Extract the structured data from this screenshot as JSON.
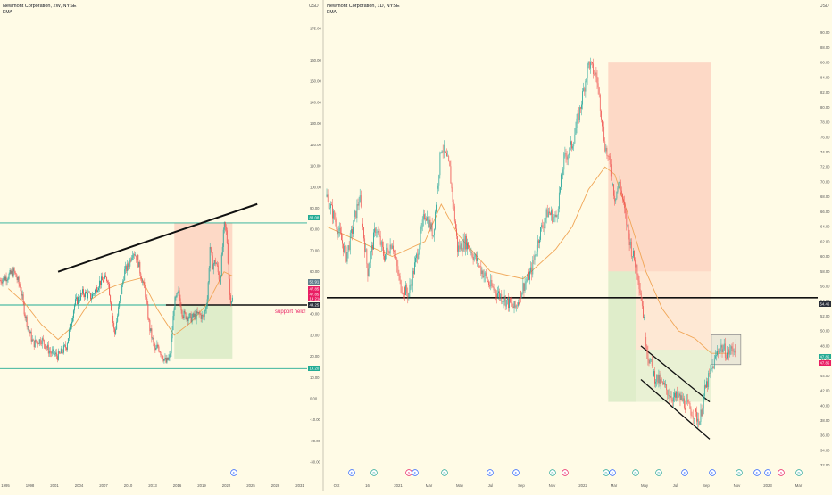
{
  "colors": {
    "background": "#fffbe6",
    "up": "#26a69a",
    "down": "#ef5350",
    "ema": "#f0a657",
    "trendline": "#111111",
    "horizontal_teal": "#22ab94",
    "profit_zone": "#4caf50",
    "loss_zone": "#f44336",
    "label_red": "#e91e63",
    "label_dark": "#2a2e39"
  },
  "chart_data": [
    {
      "type": "candlestick",
      "title": "Newmont Corporation, 2W, NYSE",
      "indicator": "EMA",
      "currency": "USD",
      "price_scale": [
        "175.00",
        "160.00",
        "150.00",
        "140.00",
        "130.00",
        "120.00",
        "110.00",
        "100.00",
        "90.00",
        "80.00",
        "70.00",
        "60.00",
        "50.00",
        "40.00",
        "30.00",
        "20.00",
        "10.00",
        "0.00",
        "-10.00",
        "-20.00",
        "-30.00"
      ],
      "x_ticks": [
        "1995",
        "1998",
        "2001",
        "2004",
        "2007",
        "2010",
        "2013",
        "2016",
        "2019",
        "2022",
        "2025",
        "2028",
        "2031"
      ],
      "last_price_labels": [
        "52.91",
        "47.85",
        "47.85",
        "14 21d"
      ],
      "level_labels": [
        "83.08",
        "44.25",
        "14.20"
      ],
      "annotation": "support held!",
      "ylim": [
        -35,
        180
      ],
      "xlim": [
        1995,
        2032
      ],
      "levels": [
        83.08,
        44.25,
        14.2
      ],
      "trendline": {
        "x": [
          2002,
          2026
        ],
        "y": [
          60,
          92
        ]
      },
      "support_line": {
        "x": [
          2015,
          2032
        ],
        "y": [
          44.25,
          44.25
        ]
      },
      "zones": {
        "loss": {
          "x": [
            2016,
            2023
          ],
          "y": [
            44.25,
            83.08
          ]
        },
        "profit": {
          "x": [
            2016,
            2023
          ],
          "y": [
            19,
            44.25
          ]
        }
      },
      "series": [
        {
          "name": "price",
          "x": [
            1995,
            1996,
            1996.7,
            1997.5,
            1998,
            1998.5,
            1999,
            2000,
            2000.5,
            2001,
            2002,
            2003,
            2004,
            2005,
            2006,
            2007,
            2008,
            2008.8,
            2009.5,
            2010,
            2010.5,
            2011,
            2011.5,
            2012,
            2012.5,
            2013,
            2013.7,
            2014,
            2015,
            2015.5,
            2016,
            2016.5,
            2017,
            2018,
            2019,
            2019.5,
            2020,
            2020.3,
            2020.6,
            2021,
            2021.5,
            2022,
            2022.3,
            2022.7,
            2023
          ],
          "y": [
            56,
            58,
            60,
            52,
            40,
            32,
            26,
            28,
            25,
            22,
            20,
            25,
            45,
            50,
            48,
            55,
            57,
            30,
            48,
            60,
            63,
            70,
            67,
            58,
            50,
            34,
            22,
            25,
            17,
            20,
            45,
            50,
            40,
            38,
            40,
            38,
            48,
            72,
            63,
            65,
            55,
            82,
            78,
            47,
            47
          ]
        },
        {
          "name": "EMA",
          "x": [
            1996,
            1998,
            2000,
            2002,
            2004,
            2006,
            2008,
            2010,
            2012,
            2014,
            2016,
            2018,
            2020,
            2022,
            2023
          ],
          "y": [
            52,
            45,
            35,
            28,
            35,
            47,
            52,
            55,
            57,
            42,
            30,
            36,
            45,
            60,
            58
          ]
        }
      ],
      "flag_markers": [
        "E"
      ]
    },
    {
      "type": "candlestick",
      "title": "Newmont Corporation, 1D, NYSE",
      "indicator": "EMA",
      "currency": "USD",
      "price_scale": [
        "90.00",
        "88.00",
        "86.00",
        "84.00",
        "82.00",
        "80.00",
        "78.00",
        "76.00",
        "74.00",
        "72.00",
        "70.00",
        "68.00",
        "66.00",
        "64.00",
        "62.00",
        "60.00",
        "58.00",
        "56.00",
        "54.00",
        "52.00",
        "50.00",
        "48.00",
        "46.00",
        "44.00",
        "42.00",
        "40.00",
        "38.00",
        "36.00",
        "34.00",
        "32.00"
      ],
      "x_ticks": [
        "Oct",
        "16",
        "2021",
        "Mar",
        "May",
        "Jul",
        "Sep",
        "Nov",
        "2022",
        "Mar",
        "May",
        "Jul",
        "Sep",
        "Nov",
        "2023",
        "Mar"
      ],
      "last_price_labels": [
        "47.85",
        "47.85"
      ],
      "level_labels": [
        "54.46"
      ],
      "ylim": [
        31,
        92
      ],
      "xlim": [
        0,
        30
      ],
      "levels": [
        54.46
      ],
      "zones": {
        "loss": {
          "x": [
            17.2,
            23.5
          ],
          "y": [
            58,
            86
          ]
        },
        "profit": {
          "x": [
            17.2,
            18.9
          ],
          "y": [
            40.5,
            58
          ]
        },
        "loss_inner": {
          "x": [
            18.9,
            23.5
          ],
          "y": [
            47.5,
            58
          ]
        },
        "profit_inner": {
          "x": [
            18.9,
            23.5
          ],
          "y": [
            40.5,
            47.5
          ]
        },
        "box": {
          "x": [
            23.5,
            25.3
          ],
          "y": [
            45.5,
            49.5
          ]
        }
      },
      "channel": {
        "upper": {
          "x": [
            19.2,
            23.4
          ],
          "y": [
            48,
            40.5
          ]
        },
        "lower": {
          "x": [
            19.2,
            23.4
          ],
          "y": [
            43.5,
            35.5
          ]
        }
      },
      "series": [
        {
          "name": "price",
          "x": [
            0,
            0.5,
            1.2,
            2,
            2.5,
            3,
            3.5,
            4,
            4.5,
            5,
            5.5,
            6,
            6.5,
            7,
            7.5,
            8,
            8.5,
            9,
            9.5,
            10,
            10.5,
            11,
            11.5,
            12,
            12.5,
            13,
            13.5,
            14,
            14.5,
            15,
            15.5,
            16,
            16.5,
            17,
            17.3,
            17.6,
            17.9,
            18.2,
            18.6,
            19,
            19.3,
            19.6,
            20,
            20.4,
            20.8,
            21.2,
            21.6,
            22,
            22.4,
            22.8,
            23.1,
            23.4,
            23.7,
            24,
            24.5,
            25
          ],
          "y": [
            68,
            65,
            60,
            68,
            58,
            64,
            60,
            62,
            56,
            55,
            60,
            66,
            63,
            75,
            72,
            61,
            62,
            60,
            58,
            56,
            55,
            54,
            53,
            56,
            58,
            63,
            66,
            65,
            73,
            75,
            80,
            86,
            84,
            75,
            72,
            68,
            70,
            66,
            61,
            58,
            53,
            47,
            44,
            43,
            42,
            41,
            41,
            40,
            39,
            38,
            42,
            44,
            46,
            48,
            47,
            48
          ]
        },
        {
          "name": "EMA",
          "x": [
            0,
            2,
            4,
            6,
            7,
            8,
            10,
            12,
            14,
            15,
            16,
            17,
            17.6,
            18.5,
            19.5,
            20.5,
            21.5,
            22.5,
            23.5,
            24.5
          ],
          "y": [
            64,
            62,
            60,
            62,
            67,
            63,
            58,
            57,
            61,
            64,
            69,
            72,
            71,
            65,
            58,
            53,
            50,
            49,
            47,
            47
          ]
        }
      ],
      "flag_markers": [
        "E",
        "D",
        "S",
        "E",
        "D",
        "E",
        "E",
        "D",
        "S",
        "D",
        "E",
        "D",
        "D",
        "E",
        "E",
        "D",
        "E",
        "D",
        "E",
        "S"
      ]
    }
  ]
}
